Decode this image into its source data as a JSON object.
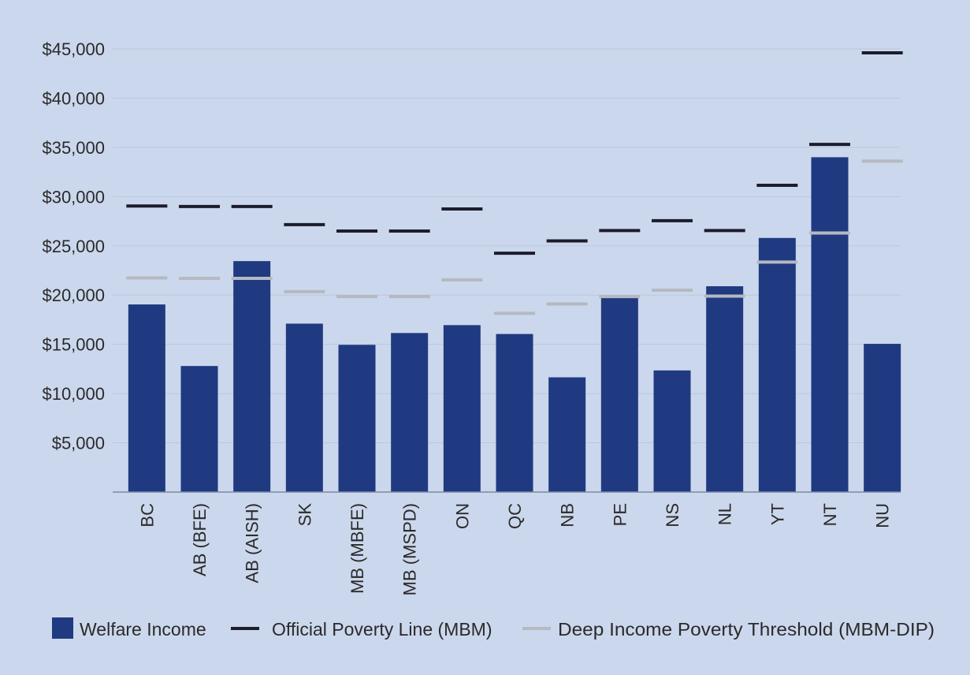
{
  "chart_data": {
    "type": "bar",
    "title": "",
    "xlabel": "",
    "ylabel": "",
    "ylim": [
      0,
      45000
    ],
    "yticks": [
      "$5,000",
      "$10,000",
      "$15,000",
      "$20,000",
      "$25,000",
      "$30,000",
      "$35,000",
      "$40,000",
      "$45,000"
    ],
    "ytick_values": [
      5000,
      10000,
      15000,
      20000,
      25000,
      30000,
      35000,
      40000,
      45000
    ],
    "grid": true,
    "legend_position": "bottom",
    "categories": [
      "BC",
      "AB (BFE)",
      "AB (AISH)",
      "SK",
      "MB (MBFE)",
      "MB (MSPD)",
      "ON",
      "QC",
      "NB",
      "PE",
      "NS",
      "NL",
      "YT",
      "NT",
      "NU"
    ],
    "series": [
      {
        "name": "Welfare Income",
        "kind": "bar",
        "color": "#1f3a80",
        "values": [
          19050,
          12800,
          23450,
          17100,
          14950,
          16150,
          16950,
          16050,
          11650,
          19800,
          12350,
          20900,
          25800,
          34000,
          15050
        ]
      },
      {
        "name": "Official Poverty Line (MBM)",
        "kind": "marker",
        "color": "#1c1c2b",
        "values": [
          29050,
          29000,
          29000,
          27150,
          26500,
          26500,
          28750,
          24250,
          25500,
          26550,
          27550,
          26550,
          31150,
          35300,
          44600
        ]
      },
      {
        "name": "Deep Income Poverty Threshold (MBM-DIP)",
        "kind": "marker",
        "color": "#b5b9c2",
        "values": [
          21750,
          21700,
          21700,
          20350,
          19850,
          19850,
          21550,
          18150,
          19100,
          19850,
          20500,
          19900,
          23350,
          26300,
          33600
        ]
      }
    ]
  }
}
